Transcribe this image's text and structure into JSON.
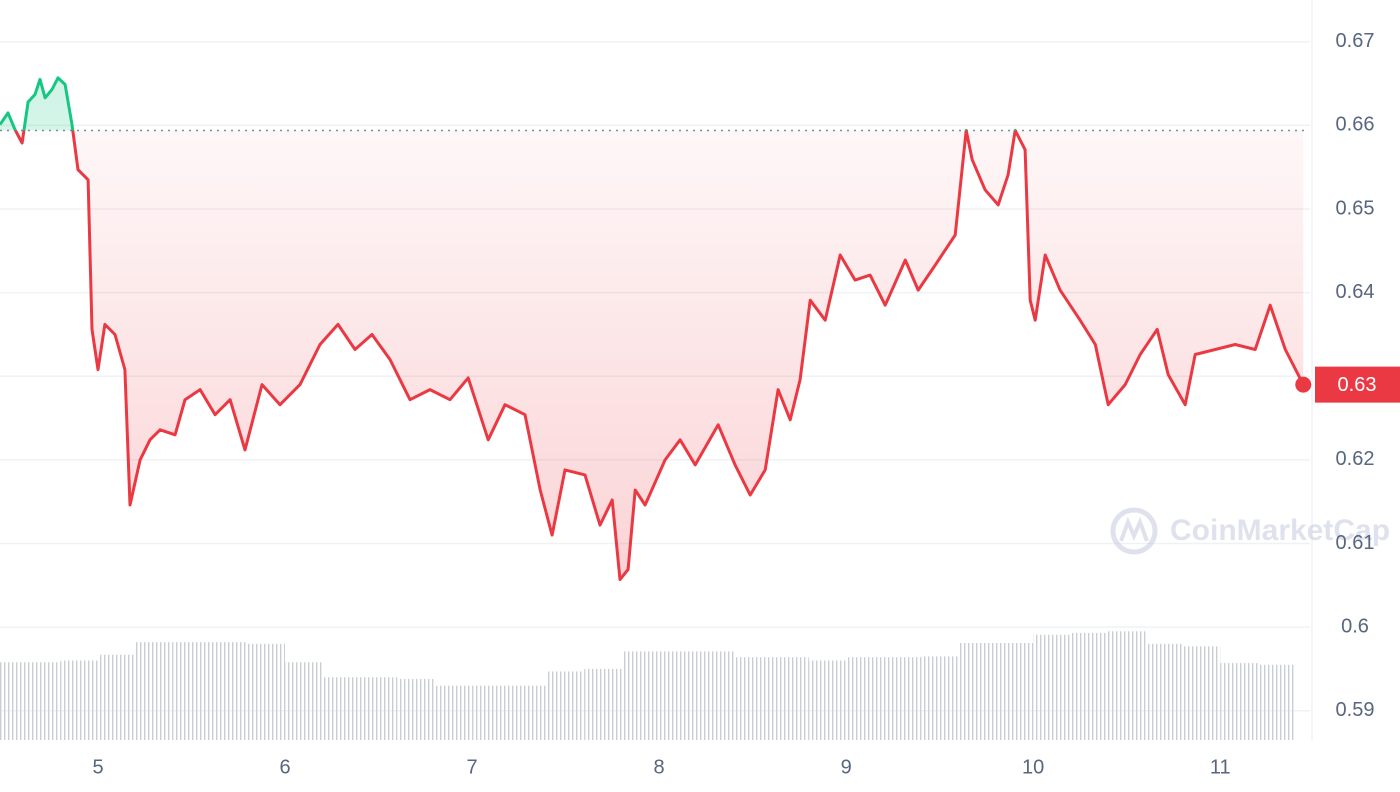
{
  "chart_data": {
    "type": "line",
    "x": [
      4.476,
      4.519,
      4.556,
      4.594,
      4.626,
      4.663,
      4.69,
      4.717,
      4.754,
      4.786,
      4.824,
      4.861,
      4.893,
      4.947,
      4.968,
      5.0,
      5.037,
      5.091,
      5.144,
      5.171,
      5.225,
      5.278,
      5.332,
      5.412,
      5.465,
      5.546,
      5.626,
      5.706,
      5.786,
      5.877,
      5.973,
      6.08,
      6.187,
      6.283,
      6.374,
      6.465,
      6.561,
      6.668,
      6.775,
      6.882,
      6.979,
      7.086,
      7.176,
      7.283,
      7.364,
      7.428,
      7.497,
      7.604,
      7.684,
      7.749,
      7.791,
      7.834,
      7.872,
      7.925,
      8.032,
      8.112,
      8.193,
      8.316,
      8.406,
      8.487,
      8.567,
      8.636,
      8.701,
      8.754,
      8.808,
      8.888,
      8.968,
      9.048,
      9.128,
      9.209,
      9.316,
      9.385,
      9.476,
      9.583,
      9.642,
      9.674,
      9.743,
      9.813,
      9.866,
      9.904,
      9.957,
      9.984,
      10.011,
      10.064,
      10.144,
      10.251,
      10.332,
      10.401,
      10.492,
      10.572,
      10.663,
      10.722,
      10.813,
      10.866,
      10.973,
      11.08,
      11.187,
      11.267,
      11.348,
      11.444
    ],
    "values": [
      0.6601,
      0.6615,
      0.6595,
      0.6579,
      0.6628,
      0.6637,
      0.6655,
      0.6633,
      0.6643,
      0.6657,
      0.6649,
      0.6601,
      0.6547,
      0.6535,
      0.6356,
      0.6308,
      0.6362,
      0.635,
      0.6308,
      0.6146,
      0.62,
      0.6224,
      0.6236,
      0.623,
      0.6272,
      0.6284,
      0.6254,
      0.6272,
      0.6212,
      0.629,
      0.6266,
      0.629,
      0.6338,
      0.6362,
      0.6332,
      0.635,
      0.632,
      0.6272,
      0.6284,
      0.6272,
      0.6298,
      0.6224,
      0.6266,
      0.6254,
      0.6164,
      0.611,
      0.6188,
      0.6182,
      0.6122,
      0.6152,
      0.6057,
      0.6069,
      0.6164,
      0.6146,
      0.62,
      0.6224,
      0.6194,
      0.6242,
      0.6194,
      0.6158,
      0.6188,
      0.6284,
      0.6248,
      0.6296,
      0.6391,
      0.6367,
      0.6445,
      0.6415,
      0.6421,
      0.6385,
      0.6439,
      0.6403,
      0.6433,
      0.6469,
      0.6594,
      0.6559,
      0.6523,
      0.6505,
      0.6541,
      0.6594,
      0.6571,
      0.6391,
      0.6367,
      0.6445,
      0.6403,
      0.6367,
      0.6338,
      0.6266,
      0.629,
      0.6326,
      0.6356,
      0.6302,
      0.6266,
      0.6326,
      0.6332,
      0.6338,
      0.6332,
      0.6385,
      0.6332,
      0.629
    ],
    "up_color": "#16c784",
    "down_color": "#ea3943",
    "reference": 0.6594,
    "current_price": {
      "value": 0.629,
      "label": "0.63"
    },
    "volume": {
      "x": [
        4.5,
        4.7,
        4.9,
        5.1,
        5.3,
        5.5,
        5.7,
        5.9,
        6.1,
        6.3,
        6.5,
        6.7,
        6.9,
        7.1,
        7.3,
        7.5,
        7.7,
        7.9,
        8.1,
        8.3,
        8.5,
        8.7,
        8.9,
        9.1,
        9.3,
        9.5,
        9.7,
        9.9,
        10.1,
        10.3,
        10.5,
        10.7,
        10.9,
        11.1,
        11.3
      ],
      "values": [
        0.5958,
        0.5958,
        0.596,
        0.5967,
        0.5982,
        0.5982,
        0.5982,
        0.598,
        0.5958,
        0.594,
        0.594,
        0.5938,
        0.593,
        0.593,
        0.593,
        0.5947,
        0.595,
        0.5971,
        0.5971,
        0.5971,
        0.5964,
        0.5964,
        0.596,
        0.5964,
        0.5964,
        0.5965,
        0.5981,
        0.5981,
        0.5991,
        0.5993,
        0.5995,
        0.598,
        0.5977,
        0.5957,
        0.5955
      ],
      "color": "#c9ced6"
    },
    "xlim": [
      4.476,
      11.48
    ],
    "xticks": [
      5,
      6,
      7,
      8,
      9,
      10,
      11
    ],
    "ylim": [
      0.5865,
      0.675
    ],
    "yticks": [
      0.59,
      0.6,
      0.61,
      0.62,
      0.63,
      0.64,
      0.65,
      0.66,
      0.67
    ],
    "grid": true,
    "watermark": "CoinMarketCap"
  }
}
